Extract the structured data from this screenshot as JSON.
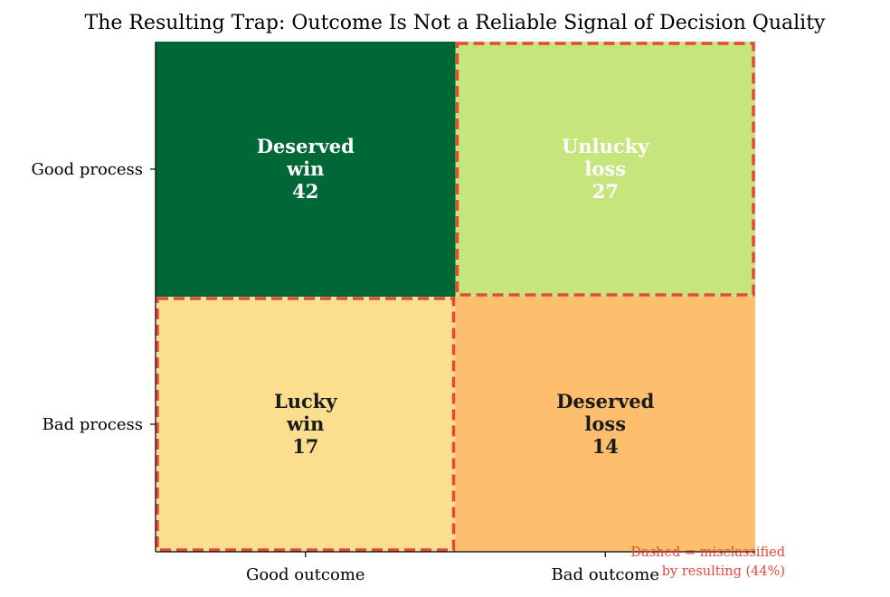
{
  "chart_data": {
    "type": "heatmap",
    "title": "The Resulting Trap: Outcome Is Not a Reliable Signal of Decision Quality",
    "x_categories": [
      "Good outcome",
      "Bad outcome"
    ],
    "y_categories": [
      "Good process",
      "Bad process"
    ],
    "cells": [
      {
        "row": 0,
        "col": 0,
        "label_lines": [
          "Deserved",
          "win"
        ],
        "value": 42,
        "color": "#006837",
        "text_color": "#ffffff",
        "misclassified": false
      },
      {
        "row": 0,
        "col": 1,
        "label_lines": [
          "Unlucky",
          "loss"
        ],
        "value": 27,
        "color": "#c6e67d",
        "text_color": "#ffffff",
        "misclassified": true
      },
      {
        "row": 1,
        "col": 0,
        "label_lines": [
          "Lucky",
          "win"
        ],
        "value": 17,
        "color": "#fcdf8e",
        "text_color": "#1a1a1a",
        "misclassified": true
      },
      {
        "row": 1,
        "col": 1,
        "label_lines": [
          "Deserved",
          "loss"
        ],
        "value": 14,
        "color": "#fdbe6e",
        "text_color": "#1a1a1a",
        "misclassified": false
      }
    ],
    "annotation_lines": [
      "Dashed = misclassified",
      "by resulting (44%)"
    ],
    "misclassified_color": "#e8483b"
  }
}
